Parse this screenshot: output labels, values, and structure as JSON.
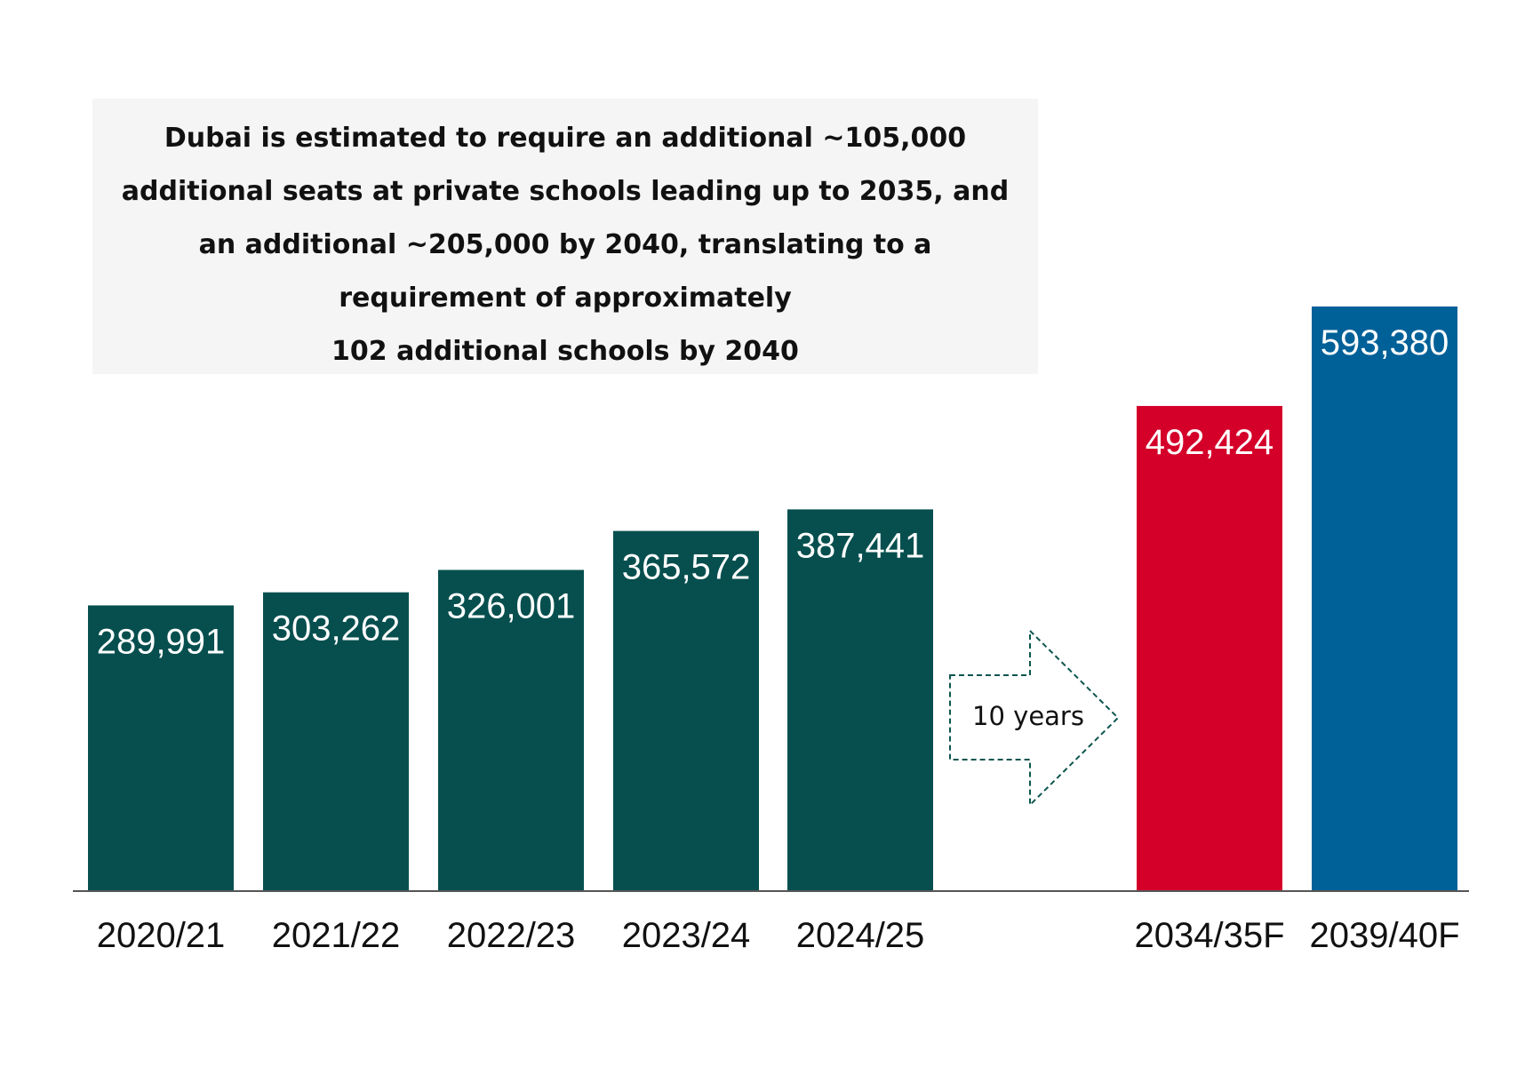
{
  "callout": {
    "lines": [
      "Dubai is estimated to require an additional ~105,000",
      "additional seats at private schools leading up to 2035, and",
      "an additional ~205,000 by 2040, translating to a",
      "requirement of approximately",
      "102 additional schools by 2040"
    ]
  },
  "arrow": {
    "label": "10 years",
    "color": "#0d5550"
  },
  "chart_data": {
    "type": "bar",
    "title": "",
    "xlabel": "",
    "ylabel": "",
    "ylim": [
      0,
      650000
    ],
    "grid": false,
    "categories": [
      "2020/21",
      "2021/22",
      "2022/23",
      "2023/24",
      "2024/25",
      "2034/35F",
      "2039/40F"
    ],
    "values": [
      289991,
      303262,
      326001,
      365572,
      387441,
      492424,
      593380
    ],
    "value_labels": [
      "289,991",
      "303,262",
      "326,001",
      "365,572",
      "387,441",
      "492,424",
      "593,380"
    ],
    "colors": [
      "#074f4f",
      "#074f4f",
      "#074f4f",
      "#074f4f",
      "#074f4f",
      "#d4002a",
      "#006098"
    ]
  }
}
